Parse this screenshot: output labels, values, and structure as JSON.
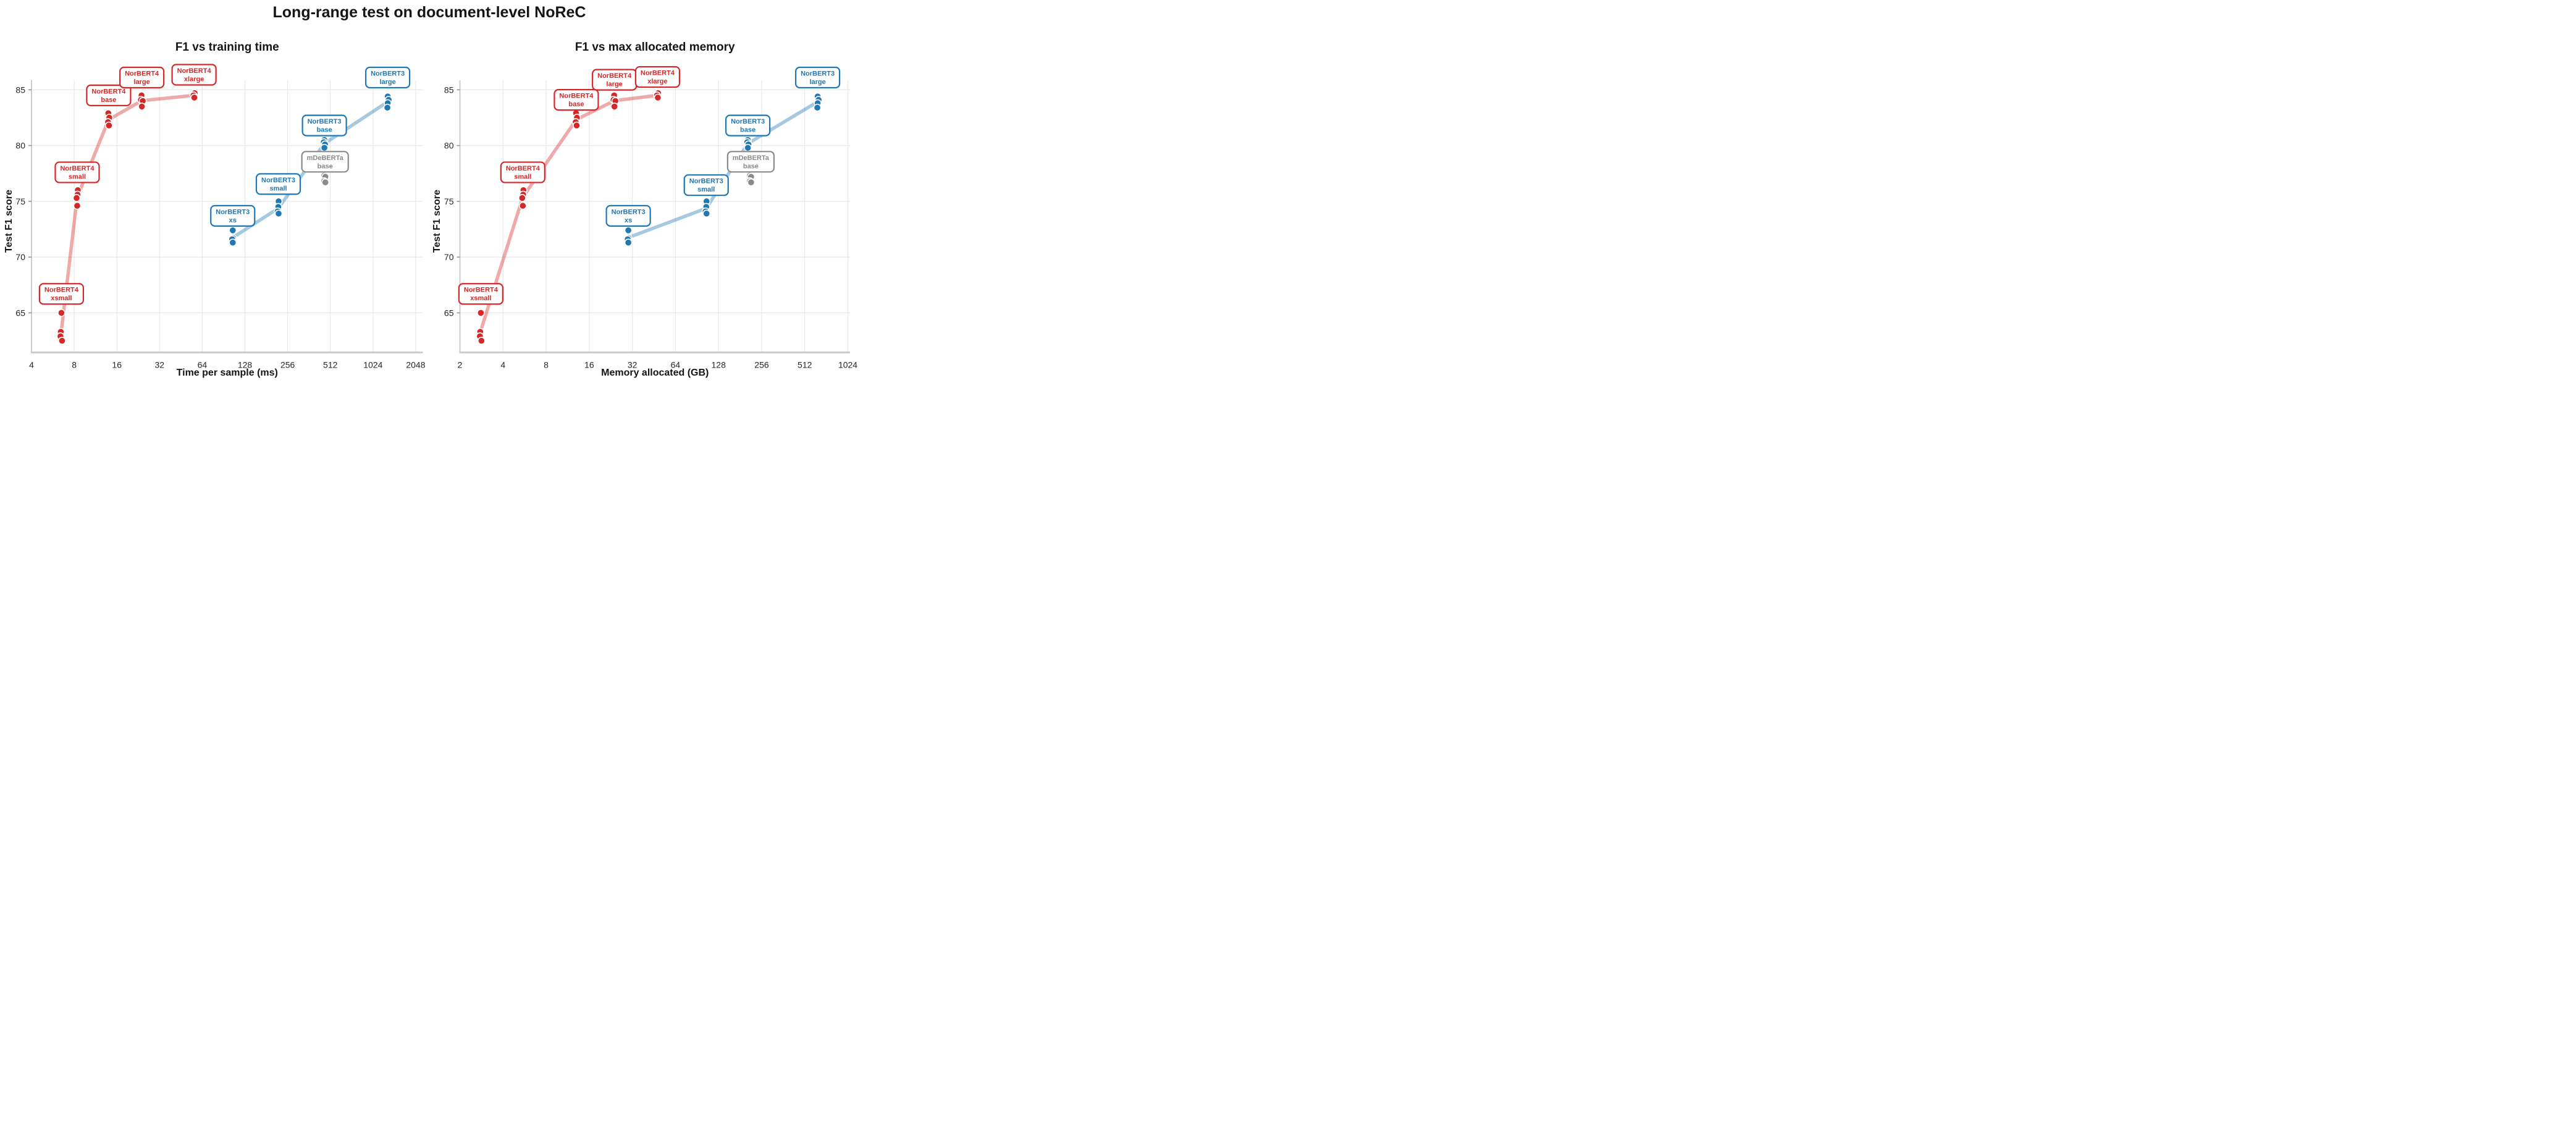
{
  "chart_data": {
    "type": "scatter",
    "title": "Long-range test on document-level NoReC",
    "ylabel": "Test F1 score",
    "y_ticks": [
      65,
      70,
      75,
      80,
      85
    ],
    "ylim": [
      61.45,
      85.85
    ],
    "grid": true,
    "legend_position": "none",
    "background_color": "#ffffff",
    "gridline_color": "#e8e8e8",
    "spine_color": "#cccccc",
    "subplots": [
      {
        "title": "F1 vs training time",
        "xlabel": "Time per sample (ms)",
        "x_key": "time_ms",
        "x_scale": "log2",
        "x_ticks": [
          4,
          8,
          16,
          32,
          64,
          128,
          256,
          512,
          1024,
          2048
        ],
        "xlim": [
          4,
          2300
        ]
      },
      {
        "title": "F1 vs max allocated memory",
        "xlabel": "Memory allocated (GB)",
        "x_key": "memory_gb",
        "x_scale": "log2",
        "x_ticks": [
          2,
          4,
          8,
          16,
          32,
          64,
          128,
          256,
          512,
          1024
        ],
        "xlim": [
          2,
          1060
        ]
      }
    ],
    "series": [
      {
        "name": "NorBERT4",
        "color": "#d62728",
        "line_color": "rgba(214,39,40,0.40)",
        "connect_line": true,
        "clusters": [
          {
            "label_lines": [
              "NorBERT4",
              "xsmall"
            ],
            "time_ms": 6.5,
            "memory_gb": 2.8,
            "f1_scores": [
              65.0,
              63.3,
              62.9,
              62.5
            ],
            "jitter": [
              0,
              -1,
              -1.5,
              1
            ],
            "label_f1": {
              "time": 66.7,
              "memory": 66.7
            }
          },
          {
            "label_lines": [
              "NorBERT4",
              "small"
            ],
            "time_ms": 8.4,
            "memory_gb": 5.5,
            "f1_scores": [
              76.0,
              75.6,
              75.3,
              74.6
            ],
            "jitter": [
              1,
              0.5,
              -1,
              0
            ],
            "label_f1": {
              "time": 77.6,
              "memory": 77.6
            }
          },
          {
            "label_lines": [
              "NorBERT4",
              "base"
            ],
            "time_ms": 14,
            "memory_gb": 13,
            "f1_scores": [
              82.9,
              82.5,
              82.1,
              81.8
            ],
            "jitter": [
              -0.5,
              1,
              -1,
              0.5
            ],
            "label_f1": {
              "time": 84.5,
              "memory": 84.1
            }
          },
          {
            "label_lines": [
              "NorBERT4",
              "large"
            ],
            "time_ms": 24,
            "memory_gb": 24,
            "f1_scores": [
              84.5,
              84.1,
              84.0,
              83.5
            ],
            "jitter": [
              -0.5,
              -1.5,
              1.5,
              0
            ],
            "label_f1": {
              "time": 86.1,
              "memory": 85.9
            }
          },
          {
            "label_lines": [
              "NorBERT4",
              "xlarge"
            ],
            "time_ms": 56,
            "memory_gb": 48,
            "f1_scores": [
              84.7,
              84.5,
              84.3
            ],
            "jitter": [
              1,
              -1,
              0.5
            ],
            "label_f1": {
              "time": 86.35,
              "memory": 86.15
            }
          }
        ]
      },
      {
        "name": "NorBERT3",
        "color": "#1f77b4",
        "line_color": "rgba(31,119,180,0.40)",
        "connect_line": true,
        "clusters": [
          {
            "label_lines": [
              "NorBERT3",
              "xs"
            ],
            "time_ms": 105,
            "memory_gb": 30,
            "f1_scores": [
              72.4,
              71.7,
              71.6,
              71.3
            ],
            "jitter": [
              0,
              0.5,
              -1,
              0
            ],
            "label_f1": {
              "time": 73.7,
              "memory": 73.7
            }
          },
          {
            "label_lines": [
              "NorBERT3",
              "small"
            ],
            "time_ms": 220,
            "memory_gb": 105,
            "f1_scores": [
              75.0,
              74.5,
              74.1,
              73.9
            ],
            "jitter": [
              0.5,
              0,
              -1,
              0.5
            ],
            "label_f1": {
              "time": 76.55,
              "memory": 76.45
            }
          },
          {
            "label_lines": [
              "NorBERT3",
              "base"
            ],
            "time_ms": 465,
            "memory_gb": 205,
            "f1_scores": [
              80.5,
              80.3,
              80.1,
              79.8
            ],
            "jitter": [
              0,
              -1,
              1,
              0
            ],
            "label_f1": {
              "time": 81.8,
              "memory": 81.8
            }
          },
          {
            "label_lines": [
              "NorBERT3",
              "large"
            ],
            "time_ms": 1300,
            "memory_gb": 630,
            "f1_scores": [
              84.4,
              84.1,
              83.8,
              83.4
            ],
            "jitter": [
              0,
              1.5,
              0,
              -0.5
            ],
            "label_f1": {
              "time": 86.1,
              "memory": 86.1
            }
          }
        ]
      },
      {
        "name": "mDeBERTa",
        "color": "#8a8a8a",
        "line_color": "rgba(138,138,138,0.40)",
        "connect_line": false,
        "clusters": [
          {
            "label_lines": [
              "mDeBERTa",
              "base"
            ],
            "time_ms": 470,
            "memory_gb": 215,
            "f1_scores": [
              77.3,
              77.2,
              76.8,
              76.7
            ],
            "jitter": [
              -1.5,
              0.5,
              -1.5,
              0.5
            ],
            "label_f1": {
              "time": 78.55,
              "memory": 78.55
            }
          }
        ]
      }
    ]
  }
}
